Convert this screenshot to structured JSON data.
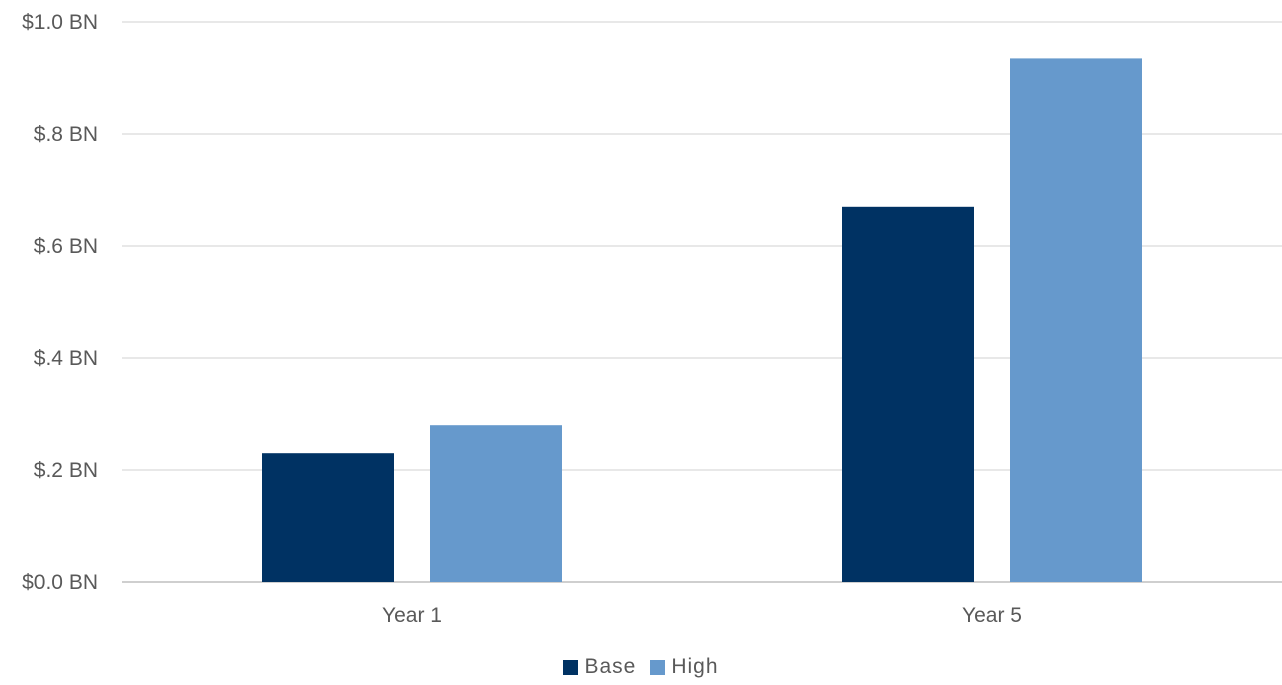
{
  "chart_data": {
    "type": "bar",
    "categories": [
      "Year 1",
      "Year 5"
    ],
    "series": [
      {
        "name": "Base",
        "values": [
          0.23,
          0.67
        ],
        "color": "#003263"
      },
      {
        "name": "High",
        "values": [
          0.28,
          0.935
        ],
        "color": "#6699cc"
      }
    ],
    "y_ticks": [
      {
        "value": 0.0,
        "label": "$0.0 BN"
      },
      {
        "value": 0.2,
        "label": "$.2 BN"
      },
      {
        "value": 0.4,
        "label": "$.4 BN"
      },
      {
        "value": 0.6,
        "label": "$.6 BN"
      },
      {
        "value": 0.8,
        "label": "$.8 BN"
      },
      {
        "value": 1.0,
        "label": "$1.0 BN"
      }
    ],
    "ylim": [
      0,
      1.0
    ],
    "grid": true,
    "legend_position": "bottom",
    "gridline_color": "#d9d9d9",
    "axis_line_color": "#bfbfbf"
  }
}
